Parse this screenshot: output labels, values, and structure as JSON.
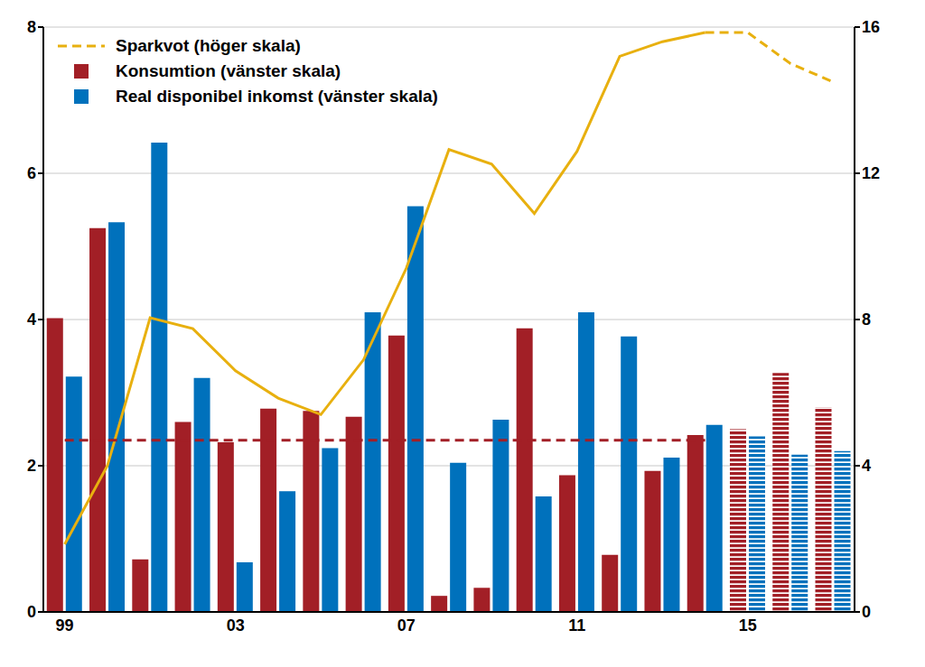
{
  "chart_data": {
    "type": "bar",
    "categories": [
      "99",
      null,
      null,
      null,
      "03",
      null,
      null,
      null,
      "07",
      null,
      null,
      null,
      "11",
      null,
      null,
      null,
      "15",
      null,
      null
    ],
    "series": [
      {
        "name": "Sparkvot (höger skala)",
        "type": "line",
        "axis": "y2",
        "color": "#e8b00f",
        "line_style": "dashed",
        "values": [
          null,
          null,
          null,
          null,
          null,
          null,
          null,
          null,
          null,
          null,
          null,
          null,
          null,
          null,
          null,
          15.85,
          15.85,
          15.0,
          14.5
        ]
      },
      {
        "name": "Konsumtion (vänster skala)",
        "type": "bar",
        "color": "#a21f26",
        "values": [
          4.02,
          5.25,
          0.72,
          2.6,
          2.32,
          2.78,
          2.75,
          2.67,
          3.78,
          0.22,
          0.33,
          3.88,
          1.87,
          0.78,
          1.93,
          2.42,
          2.5,
          3.27,
          2.8
        ]
      },
      {
        "name": "Real disponibel inkomst (vänster skala)",
        "type": "bar",
        "color": "#0071bc",
        "values": [
          3.22,
          5.33,
          6.42,
          3.2,
          0.68,
          1.65,
          2.24,
          4.1,
          5.55,
          2.04,
          2.63,
          1.58,
          4.1,
          3.77,
          2.11,
          2.56,
          2.4,
          2.15,
          2.2
        ]
      },
      {
        "type": "line",
        "axis": "y2",
        "color": "#e8b00f",
        "line_style": "solid",
        "values": [
          1.85,
          4.0,
          8.05,
          7.75,
          6.6,
          5.85,
          5.4,
          6.9,
          9.4,
          12.65,
          12.25,
          10.9,
          12.6,
          15.2,
          15.6,
          15.85,
          null,
          null,
          null
        ]
      },
      {
        "type": "line",
        "color": "#a21f26",
        "line_style": "dashed",
        "values": [
          2.35,
          2.35,
          2.35,
          2.35,
          2.35,
          2.35,
          2.35,
          2.35,
          2.35,
          2.35,
          2.35,
          2.35,
          2.35,
          2.35,
          2.35,
          2.35,
          null,
          null,
          null
        ]
      }
    ],
    "ylim": [
      0,
      8
    ],
    "yticks": [
      0,
      2,
      4,
      6,
      8
    ],
    "y2lim": [
      0,
      16
    ],
    "y2ticks": [
      0,
      4,
      8,
      12,
      16
    ],
    "grid": true,
    "legend": "upper left",
    "forecast_from": "15"
  }
}
